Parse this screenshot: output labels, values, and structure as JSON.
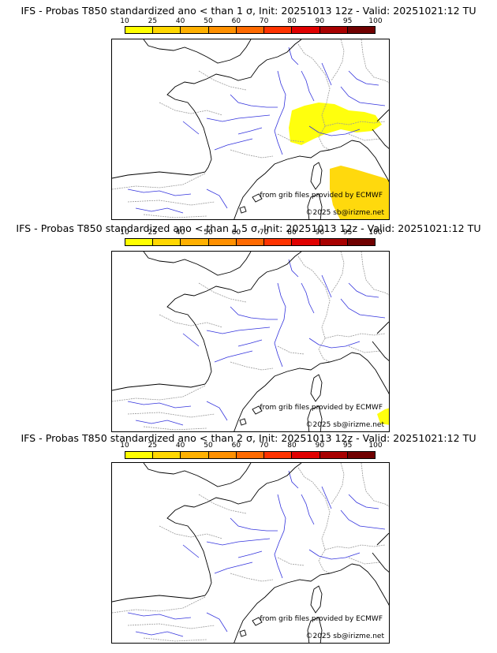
{
  "panels": [
    {
      "title": "IFS - Probas T850  standardized ano < than 1 σ, Init: 20251013 12z - Valid: 20251021:12 TU",
      "threshold": "1 σ",
      "probability_areas": [
        {
          "region": "Alps / northern Italy",
          "level_percent": 10
        },
        {
          "region": "Tyrrhenian Sea / central Italy",
          "level_percent": 25
        }
      ]
    },
    {
      "title": "IFS - Probas T850  standardized ano < than 1.5 σ, Init: 20251013 12z - Valid: 20251021:12 TU",
      "threshold": "1.5 σ",
      "probability_areas": [
        {
          "region": "southern Italy corner",
          "level_percent": 10
        }
      ]
    },
    {
      "title": "IFS - Probas T850  standardized ano < than 2 σ, Init: 20251013 12z - Valid: 20251021:12 TU",
      "threshold": "2 σ",
      "probability_areas": []
    }
  ],
  "scale": {
    "labels": [
      "10",
      "25",
      "40",
      "50",
      "60",
      "70",
      "80",
      "90",
      "95",
      "100"
    ],
    "colors": [
      "#ffff00",
      "#ffd700",
      "#ffb000",
      "#ff9000",
      "#ff6a00",
      "#ff3300",
      "#e00000",
      "#a80000",
      "#700000"
    ]
  },
  "credits": {
    "grib": "from grib files provided by ECMWF",
    "copyright": "©2025 sb@irizme.net"
  },
  "colors": {
    "rivers": "#3333dd",
    "borders": "#999999",
    "coast": "#000000"
  }
}
